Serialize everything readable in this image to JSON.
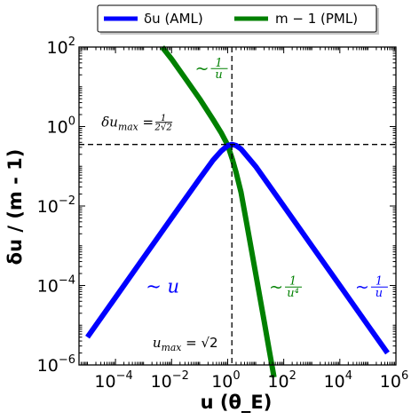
{
  "chart_data": {
    "type": "line",
    "xscale": "log",
    "yscale": "log",
    "xlim": [
      5e-06,
      1000000
    ],
    "ylim": [
      1e-06,
      100
    ],
    "xlabel": "u (θ_E)",
    "ylabel": "δu / (m - 1)",
    "xticks": [
      {
        "value": 0.0001,
        "base": "10",
        "exp": "−4"
      },
      {
        "value": 0.01,
        "base": "10",
        "exp": "−2"
      },
      {
        "value": 1,
        "base": "10",
        "exp": "0"
      },
      {
        "value": 100,
        "base": "10",
        "exp": "2"
      },
      {
        "value": 10000,
        "base": "10",
        "exp": "4"
      },
      {
        "value": 1000000,
        "base": "10",
        "exp": "6"
      }
    ],
    "yticks": [
      {
        "value": 1e-06,
        "base": "10",
        "exp": "−6"
      },
      {
        "value": 0.0001,
        "base": "10",
        "exp": "−4"
      },
      {
        "value": 0.01,
        "base": "10",
        "exp": "−2"
      },
      {
        "value": 1,
        "base": "10",
        "exp": "0"
      },
      {
        "value": 100,
        "base": "10",
        "exp": "2"
      }
    ],
    "grid": false,
    "legend_placement": "top-center, above plot",
    "series": [
      {
        "name": "δu (AML)",
        "color": "#0000ff",
        "x": [
          1e-05,
          0.0001,
          0.001,
          0.01,
          0.1,
          0.3,
          0.6,
          1.0,
          1.414,
          2.0,
          3.0,
          10,
          100,
          1000,
          10000,
          100000,
          500000
        ],
        "y": [
          5e-06,
          5e-05,
          0.0005,
          0.005,
          0.049,
          0.1418,
          0.2459,
          0.3333,
          0.3536,
          0.3333,
          0.2727,
          0.099,
          0.01,
          0.001,
          0.0001,
          1e-05,
          2e-06
        ]
      },
      {
        "name": "m − 1 (PML)",
        "color": "#008000",
        "x": [
          0.00463,
          0.01,
          0.03,
          0.1,
          0.3,
          0.6,
          1.0,
          1.5,
          2.0,
          3.0,
          5.0,
          10,
          20,
          30,
          40,
          45
        ],
        "y": [
          100,
          49.99,
          16.66,
          4.987,
          1.513,
          0.6757,
          0.3416,
          0.1435,
          0.0694,
          0.02222,
          0.003081,
          0.0001999,
          1.25e-05,
          2.47e-06,
          7.8e-07,
          4.9e-07
        ]
      }
    ],
    "reference_lines": {
      "horizontal_y": 0.35355,
      "vertical_x": 1.41421,
      "style": "dashed",
      "color": "#000000"
    },
    "annotations": [
      {
        "id": "dumax",
        "text_main": "δu",
        "text_sub": "max",
        "text_eq": " = ",
        "frac_num": "1",
        "frac_den": "2√2",
        "x": 3.16e-05,
        "y": 1.0,
        "color": "#000000"
      },
      {
        "id": "umax",
        "text_main": "u",
        "text_sub": "max",
        "text_eq": " = √2",
        "x": 0.00211,
        "y": 2.8e-06,
        "color": "#000000"
      },
      {
        "id": "aml_low",
        "text_main": "~ u",
        "x": 0.0012,
        "y": 6.7e-05,
        "color": "#0000ff"
      },
      {
        "id": "aml_high",
        "text_main": "~ ",
        "frac_num": "1",
        "frac_den": "u",
        "x": 35000,
        "y": 6.7e-05,
        "color": "#0000ff"
      },
      {
        "id": "pml_high",
        "text_main": "~ ",
        "frac_num": "1",
        "frac_den": "u⁴",
        "x": 30,
        "y": 6.7e-05,
        "color": "#008000"
      },
      {
        "id": "pml_low",
        "text_main": "~ ",
        "frac_num": "1",
        "frac_den": "u",
        "x": 0.068,
        "y": 21,
        "color": "#008000"
      }
    ]
  }
}
